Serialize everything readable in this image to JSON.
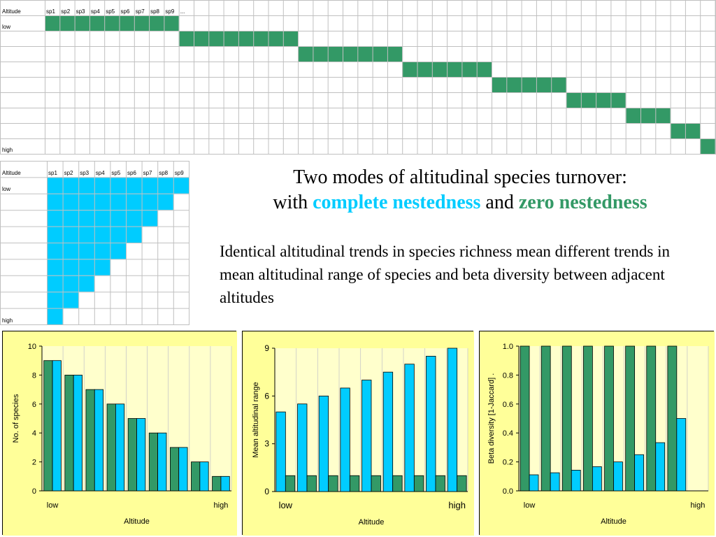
{
  "colors": {
    "green": "#339966",
    "cyan": "#00ccff",
    "panel_bg": "#ffff99",
    "plot_bg": "#ffffcc",
    "grid_line": "#c0c0c0"
  },
  "grid_zero": {
    "corner_label": "Altitude",
    "species": [
      "sp1",
      "sp2",
      "sp3",
      "sp4",
      "sp5",
      "sp6",
      "sp7",
      "sp8",
      "sp9",
      "..."
    ],
    "row_labels": {
      "first": "low",
      "last": "high"
    },
    "color": "#339966"
  },
  "grid_complete": {
    "corner_label": "Altitude",
    "species": [
      "sp1",
      "sp2",
      "sp3",
      "sp4",
      "sp5",
      "sp6",
      "sp7",
      "sp8",
      "sp9"
    ],
    "row_labels": {
      "first": "low",
      "last": "high"
    },
    "color": "#00ccff"
  },
  "title": {
    "line1": "Two modes of altitudinal species turnover:",
    "line2_prefix": "with",
    "highlight1": "complete nestedness",
    "and": "and",
    "highlight2": "zero nestedness"
  },
  "description": "Identical altitudinal trends in species richness mean different trends in mean altitudinal range of species and beta diversity between adjacent altitudes",
  "chart_data": [
    {
      "type": "bar",
      "categories": [
        "low",
        "",
        "",
        "",
        "",
        "",
        "",
        "",
        "high"
      ],
      "series": [
        {
          "color": "#339966",
          "values": [
            9,
            8,
            7,
            6,
            5,
            4,
            3,
            2,
            1
          ]
        },
        {
          "color": "#00ccff",
          "values": [
            9,
            8,
            7,
            6,
            5,
            4,
            3,
            2,
            1
          ]
        }
      ],
      "xlabel": "Altitude",
      "ylabel": "No. of species",
      "ylim": [
        0,
        10
      ],
      "yticks": [
        "0",
        "2",
        "4",
        "6",
        "8",
        "10"
      ],
      "grid": "vertical",
      "legend": "none"
    },
    {
      "type": "bar",
      "categories": [
        "low",
        "",
        "",
        "",
        "",
        "",
        "",
        "",
        "high"
      ],
      "series": [
        {
          "color": "#00ccff",
          "values": [
            5,
            5.5,
            6,
            6.5,
            7,
            7.5,
            8,
            8.5,
            9
          ]
        },
        {
          "color": "#339966",
          "values": [
            1,
            1,
            1,
            1,
            1,
            1,
            1,
            1,
            1
          ]
        }
      ],
      "xlabel": "Altitude",
      "ylabel": "Mean altitudinal range",
      "ylim": [
        0,
        9
      ],
      "yticks": [
        "0",
        "3",
        "6",
        "9"
      ],
      "grid": "vertical",
      "legend": "none"
    },
    {
      "type": "bar",
      "categories": [
        "low",
        "",
        "",
        "",
        "",
        "",
        "",
        "",
        "high"
      ],
      "series": [
        {
          "color": "#339966",
          "values": [
            1,
            1,
            1,
            1,
            1,
            1,
            1,
            1,
            0
          ]
        },
        {
          "color": "#00ccff",
          "values": [
            0.111,
            0.125,
            0.143,
            0.167,
            0.2,
            0.25,
            0.333,
            0.5,
            0
          ]
        }
      ],
      "xlabel": "Altitude",
      "ylabel": "Beta diversity [1-Jaccard] .",
      "ylim": [
        0,
        1
      ],
      "yticks": [
        "0.0",
        "0.2",
        "0.4",
        "0.6",
        "0.8",
        "1.0"
      ],
      "grid": "vertical",
      "legend": "none"
    }
  ]
}
